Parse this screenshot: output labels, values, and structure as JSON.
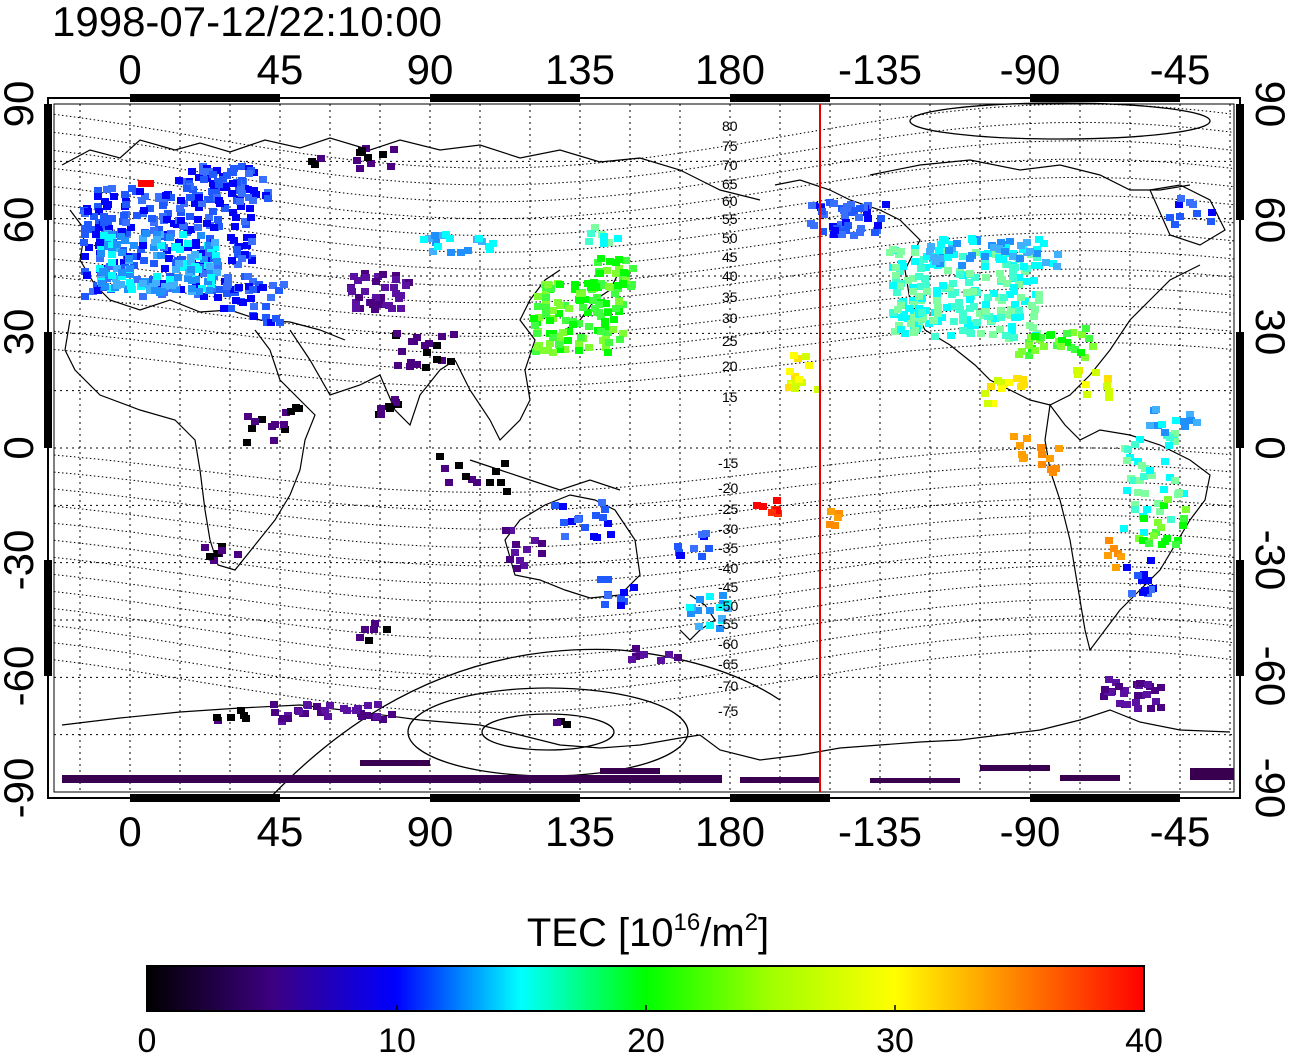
{
  "title": "1998-07-12/22:10:00",
  "map": {
    "top_longitude_labels": [
      "0",
      "45",
      "90",
      "135",
      "180",
      "-135",
      "-90",
      "-45"
    ],
    "bottom_longitude_labels": [
      "0",
      "45",
      "90",
      "135",
      "180",
      "-135",
      "-90",
      "-45"
    ],
    "left_latitude_labels": [
      "90",
      "60",
      "30",
      "0",
      "-30",
      "-60",
      "-90"
    ],
    "right_latitude_labels": [
      "90",
      "60",
      "30",
      "0",
      "-30",
      "-60",
      "-90"
    ],
    "magnetic_latitude_labels_north": [
      "80",
      "75",
      "70",
      "65",
      "60",
      "55",
      "50",
      "45",
      "40",
      "35",
      "30",
      "25",
      "20",
      "15"
    ],
    "magnetic_latitude_labels_south": [
      "-15",
      "-20",
      "-25",
      "-30",
      "-35",
      "-40",
      "-45",
      "-50",
      "-55",
      "-60",
      "-65",
      "-70",
      "-75"
    ],
    "red_line_color": "#e60000"
  },
  "colorbar": {
    "label_main": "TEC  [10",
    "label_sup1": "16",
    "label_mid": "/m",
    "label_sup2": "2",
    "label_end": "]",
    "ticks": [
      "0",
      "10",
      "20",
      "30",
      "40"
    ]
  },
  "colors": {
    "c0": "#000000",
    "c5": "#4b0082",
    "c10": "#0000ff",
    "c15": "#00ffff",
    "c20": "#00ff00",
    "c30": "#ffff00",
    "c35": "#ff8c00",
    "c40": "#ff0000"
  }
}
